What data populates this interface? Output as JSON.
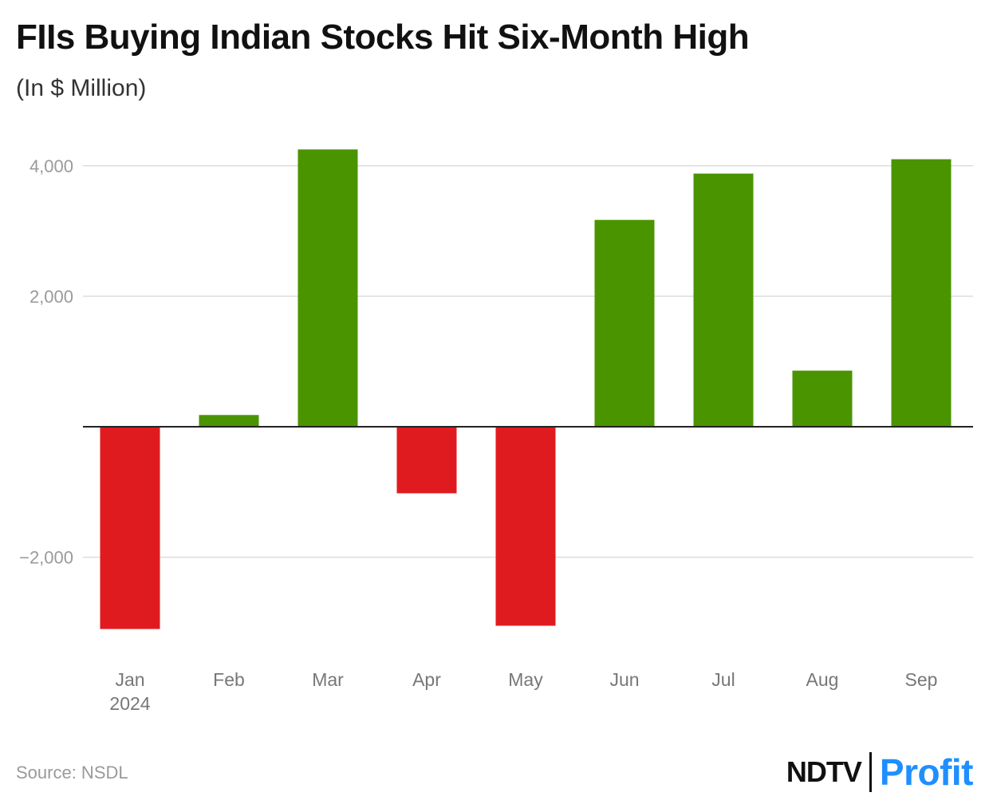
{
  "header": {
    "title": "FIIs Buying Indian Stocks Hit Six-Month High",
    "subtitle": "(In $ Million)"
  },
  "footer": {
    "source": "Source: NSDL",
    "logo_ndtv": "NDTV",
    "logo_profit": "Profit"
  },
  "colors": {
    "positive": "#4a9400",
    "negative": "#e01b1f",
    "profit_brand": "#1f8fff"
  },
  "chart_data": {
    "type": "bar",
    "title": "FIIs Buying Indian Stocks Hit Six-Month High",
    "subtitle": "(In $ Million)",
    "categories": [
      "Jan",
      "Feb",
      "Mar",
      "Apr",
      "May",
      "Jun",
      "Jul",
      "Aug",
      "Sep"
    ],
    "category_sublabels": [
      "2024",
      "",
      "",
      "",
      "",
      "",
      "",
      "",
      ""
    ],
    "values": [
      -3100,
      180,
      4250,
      -1020,
      -3050,
      3170,
      3880,
      860,
      4100
    ],
    "ylim": [
      -3300,
      4400
    ],
    "yticks": [
      -2000,
      2000,
      4000
    ],
    "ytick_labels": [
      "−2,000",
      "2,000",
      "4,000"
    ],
    "xlabel": "",
    "ylabel": "",
    "grid": true,
    "legend": "none"
  }
}
